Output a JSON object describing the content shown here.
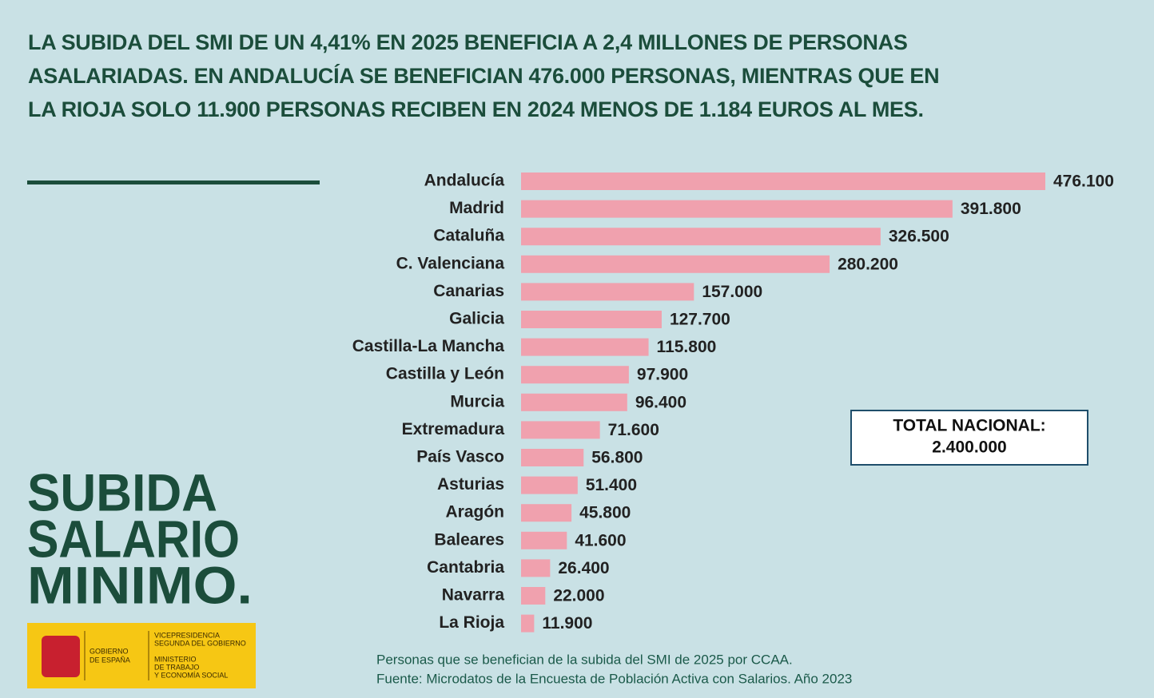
{
  "chart_data": {
    "type": "bar",
    "orientation": "horizontal",
    "title": "LA SUBIDA DEL SMI DE UN 4,41% EN 2025 BENEFICIA A 2,4 MILLONES DE PERSONAS ASALARIADAS. EN ANDALUCÍA SE BENEFICIAN 476.000 PERSONAS, MIENTRAS QUE EN LA RIOJA SOLO 11.900 PERSONAS RECIBEN EN 2024 MENOS DE 1.184 EUROS AL MES.",
    "categories": [
      "Andalucía",
      "Madrid",
      "Cataluña",
      "C. Valenciana",
      "Canarias",
      "Galicia",
      "Castilla-La Mancha",
      "Castilla y León",
      "Murcia",
      "Extremadura",
      "País Vasco",
      "Asturias",
      "Aragón",
      "Baleares",
      "Cantabria",
      "Navarra",
      "La Rioja"
    ],
    "values": [
      476100,
      391800,
      326500,
      280200,
      157000,
      127700,
      115800,
      97900,
      96400,
      71600,
      56800,
      51400,
      45800,
      41600,
      26400,
      22000,
      11900
    ],
    "value_labels": [
      "476.100",
      "391.800",
      "326.500",
      "280.200",
      "157.000",
      "127.700",
      "115.800",
      "97.900",
      "96.400",
      "71.600",
      "56.800",
      "51.400",
      "45.800",
      "41.600",
      "26.400",
      "22.000",
      "11.900"
    ],
    "color": "#f0a1ae",
    "annotations": [
      "TOTAL NACIONAL:",
      "2.400.000"
    ],
    "caption": "Personas que se benefician de la subida del SMI de 2025 por CCAA.",
    "source": "Fuente: Microdatos de la Encuesta de Población Activa con Salarios. Año 2023"
  },
  "branding": {
    "campaign": [
      "SUBIDA",
      "SALARIO",
      "MINIMO."
    ],
    "government": [
      "GOBIERNO",
      "DE ESPAÑA"
    ],
    "vicepresidency": [
      "VICEPRESIDENCIA",
      "SEGUNDA DEL GOBIERNO"
    ],
    "ministry": [
      "MINISTERIO",
      "DE TRABAJO",
      "Y ECONOMÍA SOCIAL"
    ]
  }
}
